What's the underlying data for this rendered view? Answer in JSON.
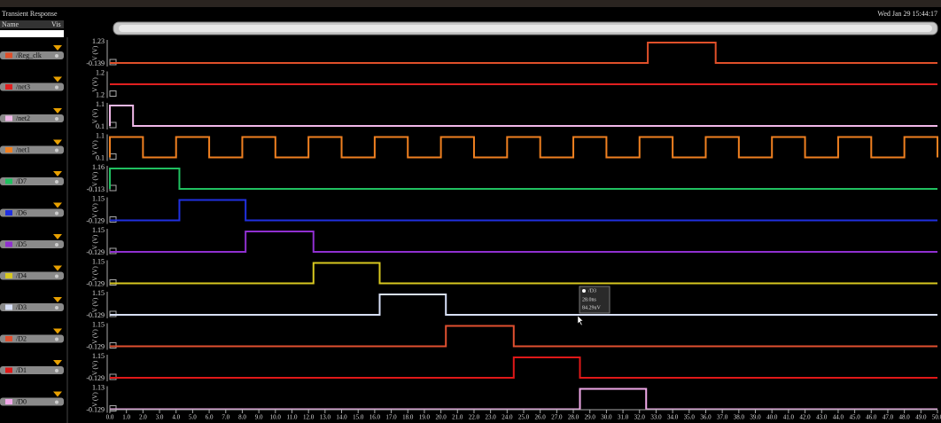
{
  "window": {
    "title": "Transient Response",
    "columns": [
      "Name",
      "Vis"
    ],
    "timestamp": "Wed Jan 29 15:44:17",
    "y_axis_label": "V (V)",
    "xlim": [
      0,
      50
    ],
    "xticks": [
      {
        "value": 0,
        "label": "0.0"
      },
      {
        "value": 1,
        "label": "1.0"
      },
      {
        "value": 2,
        "label": "2.0"
      },
      {
        "value": 3,
        "label": "3.0"
      },
      {
        "value": 4,
        "label": "4.0"
      },
      {
        "value": 5,
        "label": "5.0"
      },
      {
        "value": 6,
        "label": "6.0"
      },
      {
        "value": 7,
        "label": "7.0"
      },
      {
        "value": 8,
        "label": "8.0"
      },
      {
        "value": 9,
        "label": "9.0"
      },
      {
        "value": 10,
        "label": "10.0"
      },
      {
        "value": 11,
        "label": "11.0"
      },
      {
        "value": 12,
        "label": "12.0"
      },
      {
        "value": 13,
        "label": "13.0"
      },
      {
        "value": 14,
        "label": "14.0"
      },
      {
        "value": 15,
        "label": "15.0"
      },
      {
        "value": 16,
        "label": "16.0"
      },
      {
        "value": 17,
        "label": "17.0"
      },
      {
        "value": 18,
        "label": "18.0"
      },
      {
        "value": 19,
        "label": "19.0"
      },
      {
        "value": 20,
        "label": "20.0"
      },
      {
        "value": 21,
        "label": "21.0"
      },
      {
        "value": 22,
        "label": "22.0"
      },
      {
        "value": 23,
        "label": "23.0"
      },
      {
        "value": 24,
        "label": "24.0"
      },
      {
        "value": 25,
        "label": "25.0"
      },
      {
        "value": 26,
        "label": "26.0"
      },
      {
        "value": 27,
        "label": "27.0"
      },
      {
        "value": 28,
        "label": "28.0"
      },
      {
        "value": 29,
        "label": "29.0"
      },
      {
        "value": 30,
        "label": "30.0"
      },
      {
        "value": 31,
        "label": "31.0"
      },
      {
        "value": 32,
        "label": "32.0"
      },
      {
        "value": 33,
        "label": "33.0"
      },
      {
        "value": 34,
        "label": "34.0"
      },
      {
        "value": 35,
        "label": "35.0"
      },
      {
        "value": 36,
        "label": "36.0"
      },
      {
        "value": 37,
        "label": "37.0"
      },
      {
        "value": 38,
        "label": "38.0"
      },
      {
        "value": 39,
        "label": "39.0"
      },
      {
        "value": 40,
        "label": "40.0"
      },
      {
        "value": 41,
        "label": "41.0"
      },
      {
        "value": 42,
        "label": "42.0"
      },
      {
        "value": 43,
        "label": "43.0"
      },
      {
        "value": 44,
        "label": "44.0"
      },
      {
        "value": 45,
        "label": "45.0"
      },
      {
        "value": 46,
        "label": "46.0"
      },
      {
        "value": 47,
        "label": "47.0"
      },
      {
        "value": 48,
        "label": "48.0"
      },
      {
        "value": 49,
        "label": "49.0"
      },
      {
        "value": 50,
        "label": "50.0"
      }
    ],
    "signals": [
      {
        "name": "/Reg_clk",
        "color": "#e0502a",
        "ymax": "1.23",
        "ymin": "-0.139",
        "pulses": [
          [
            32.5,
            36.6
          ]
        ]
      },
      {
        "name": "/net3",
        "color": "#e02020",
        "ymax": "1.2",
        "ymin": "1.2",
        "pulses": []
      },
      {
        "name": "/net2",
        "color": "#f0b8e8",
        "ymax": "1.1",
        "ymin": "0.1",
        "pulses": [
          [
            0,
            1.4
          ]
        ]
      },
      {
        "name": "/net1",
        "color": "#f08020",
        "ymax": "1.1",
        "ymin": "0.1",
        "pulses": [
          [
            0,
            2
          ],
          [
            4,
            6
          ],
          [
            8,
            10
          ],
          [
            12,
            14
          ],
          [
            16,
            18
          ],
          [
            20,
            22
          ],
          [
            24,
            26
          ],
          [
            28,
            30
          ],
          [
            32,
            34
          ],
          [
            36,
            38
          ],
          [
            40,
            42
          ],
          [
            44,
            46
          ],
          [
            48,
            50
          ]
        ]
      },
      {
        "name": "/D7",
        "color": "#20c060",
        "ymax": "1.16",
        "ymin": "-0.113",
        "pulses": [
          [
            0,
            4.2
          ]
        ]
      },
      {
        "name": "/D6",
        "color": "#2030e0",
        "ymax": "1.15",
        "ymin": "-0.129",
        "pulses": [
          [
            4.2,
            8.2
          ]
        ]
      },
      {
        "name": "/D5",
        "color": "#9030d0",
        "ymax": "1.15",
        "ymin": "-0.129",
        "pulses": [
          [
            8.2,
            12.3
          ]
        ]
      },
      {
        "name": "/D4",
        "color": "#d8c820",
        "ymax": "1.15",
        "ymin": "-0.129",
        "pulses": [
          [
            12.3,
            16.3
          ]
        ]
      },
      {
        "name": "/D3",
        "color": "#d8e0f8",
        "ymax": "1.15",
        "ymin": "-0.129",
        "pulses": [
          [
            16.3,
            20.3
          ]
        ]
      },
      {
        "name": "/D2",
        "color": "#e05030",
        "ymax": "1.15",
        "ymin": "-0.129",
        "pulses": [
          [
            20.3,
            24.4
          ]
        ]
      },
      {
        "name": "/D1",
        "color": "#e01818",
        "ymax": "1.15",
        "ymin": "-0.129",
        "pulses": [
          [
            24.4,
            28.4
          ]
        ]
      },
      {
        "name": "/D0",
        "color": "#f0a8e8",
        "ymax": "1.13",
        "ymin": "-0.129",
        "pulses": [
          [
            28.4,
            32.4
          ]
        ]
      }
    ],
    "tooltip": {
      "signal": "/D3",
      "x": "28.0ns",
      "y": "84.29uV"
    }
  }
}
